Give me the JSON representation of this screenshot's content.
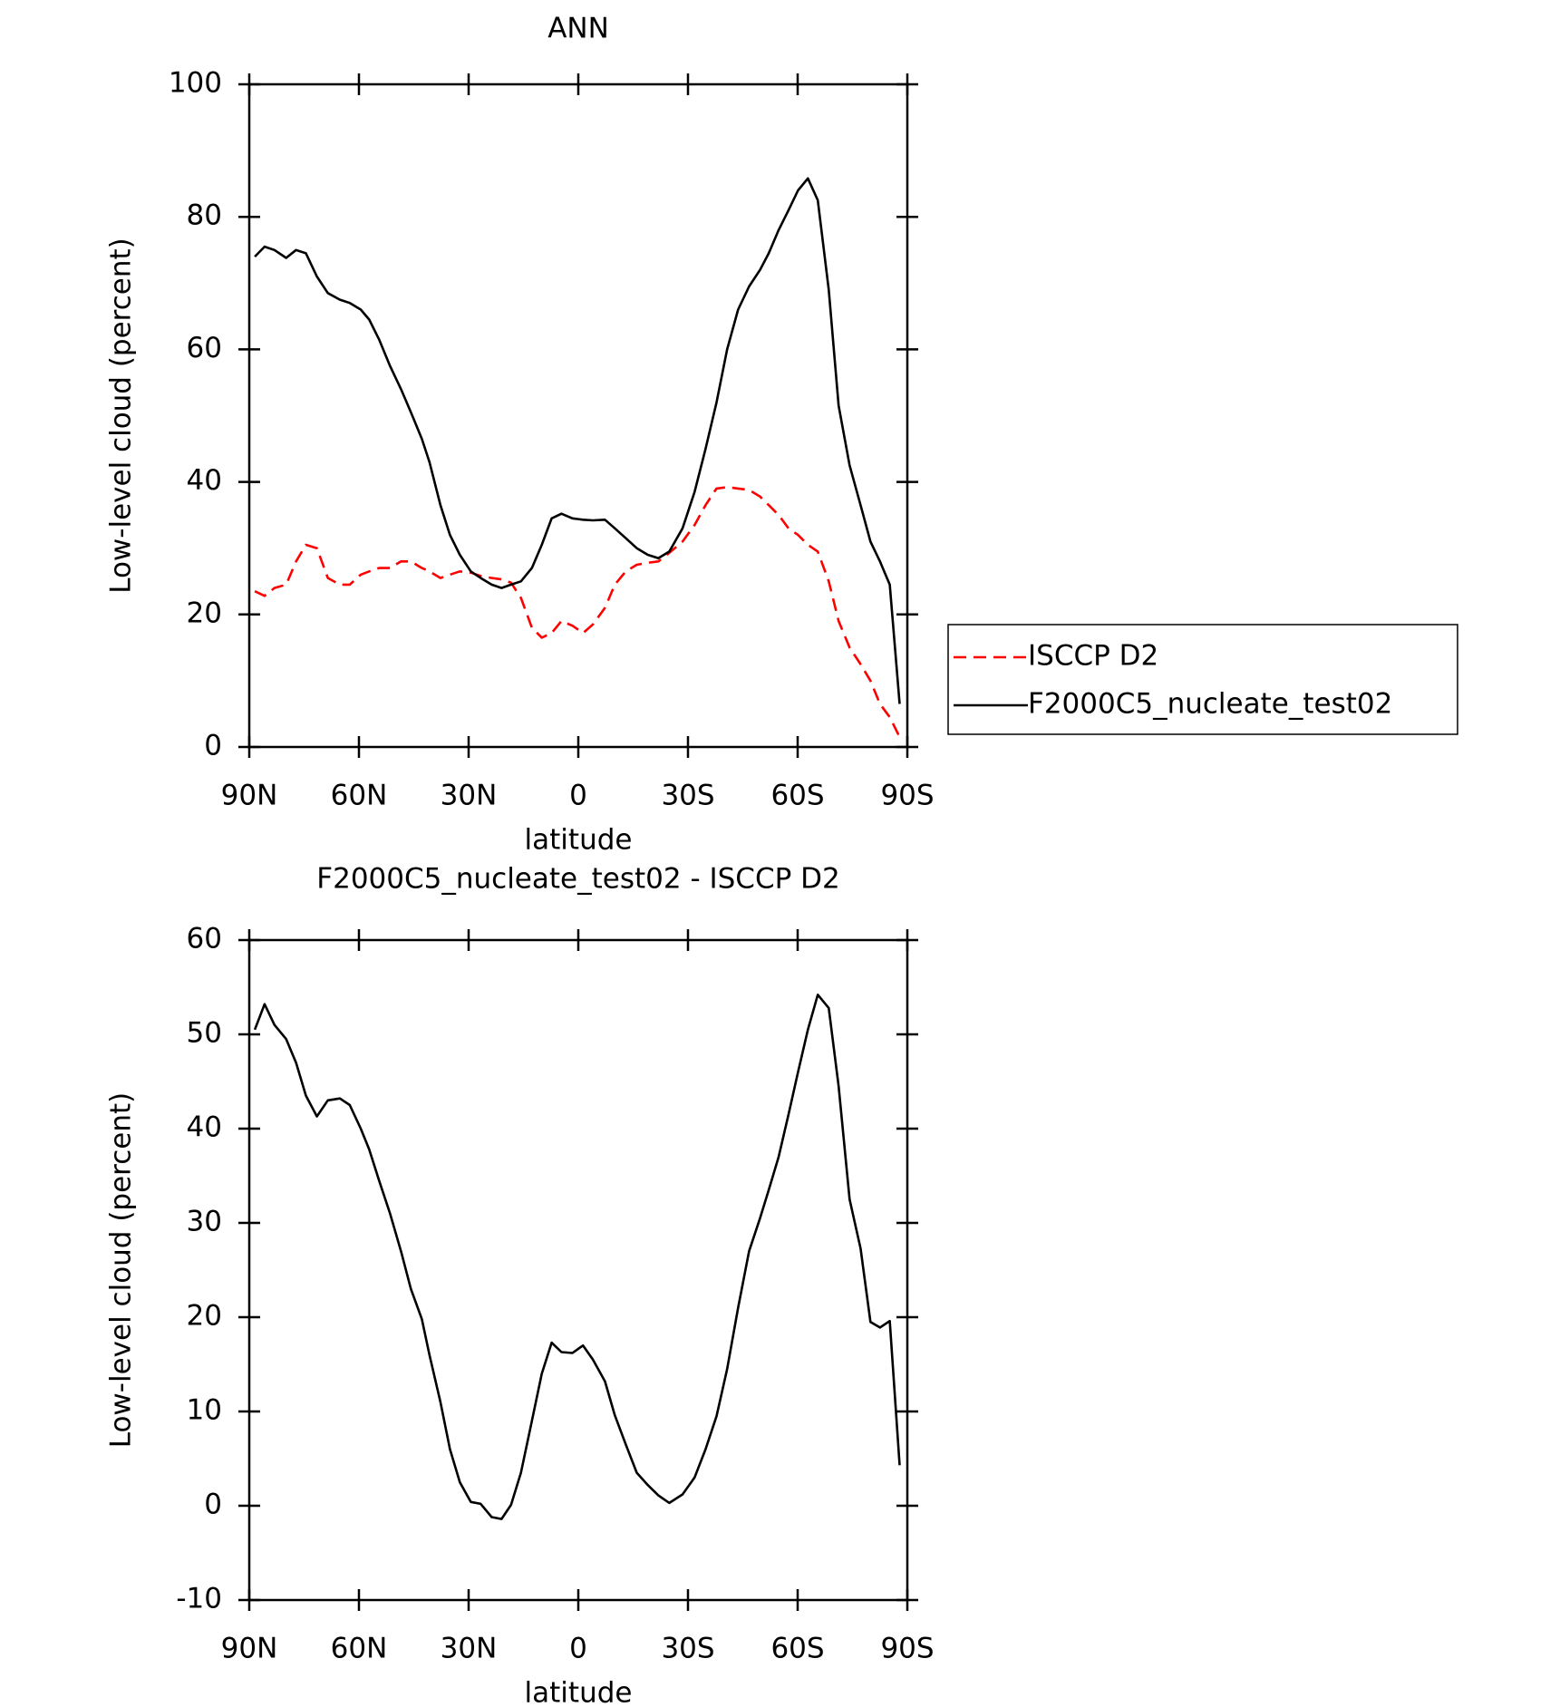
{
  "chart_data": [
    {
      "type": "line",
      "title": "ANN",
      "xlabel": "latitude",
      "ylabel": "Low-level cloud (percent)",
      "x": [
        88.5,
        85.8,
        83.1,
        79.9,
        77.2,
        74.5,
        71.5,
        68.5,
        65.2,
        62.5,
        59.5,
        57.2,
        54.5,
        51.5,
        48.5,
        45.8,
        42.8,
        40.7,
        37.7,
        35.1,
        32.4,
        29.4,
        26.7,
        23.7,
        21.0,
        18.4,
        15.7,
        12.7,
        10.0,
        7.3,
        4.6,
        1.6,
        -1.3,
        -4.0,
        -7.3,
        -10,
        -13,
        -16,
        -19,
        -21.9,
        -24.9,
        -28.5,
        -31.8,
        -34.8,
        -37.8,
        -40.7,
        -43.7,
        -46.7,
        -49.7,
        -52.1,
        -54.8,
        -57.5,
        -60.1,
        -62.8,
        -65.5,
        -68.5,
        -71.2,
        -74.2,
        -77.2,
        -79.9,
        -82.5,
        -85.2,
        -87.9
      ],
      "series": [
        {
          "name": "ISCCP D2",
          "color": "#ff0000",
          "dash": true,
          "values": [
            23.5,
            22.8,
            24,
            24.5,
            28,
            30.5,
            30,
            25.5,
            24.5,
            24.5,
            26,
            26.5,
            27,
            27,
            28,
            28,
            27,
            26.5,
            25.5,
            26,
            26.5,
            26.3,
            25.8,
            25.5,
            25.3,
            24.8,
            22.5,
            18,
            16.5,
            17.2,
            19,
            18.3,
            17.2,
            18.5,
            21,
            24.5,
            26.5,
            27.5,
            27.8,
            28,
            29.3,
            31,
            33.5,
            36.5,
            39,
            39.2,
            39,
            38.8,
            37.8,
            36.5,
            35,
            33,
            32,
            30.5,
            29.5,
            25,
            19,
            15,
            12.5,
            10,
            6.5,
            4.5,
            1.5
          ]
        },
        {
          "name": "F2000C5_nucleate_test02",
          "color": "#000000",
          "dash": false,
          "values": [
            74,
            75.5,
            75,
            73.8,
            75,
            74.5,
            71,
            68.5,
            67.5,
            67,
            66,
            64.5,
            61.5,
            57.5,
            54,
            50.5,
            46.5,
            43,
            36.5,
            32,
            29,
            26.5,
            25.5,
            24.5,
            24,
            24.5,
            25,
            27,
            30.5,
            34.5,
            35.2,
            34.5,
            34.3,
            34.2,
            34.3,
            33,
            31.5,
            30,
            29,
            28.5,
            29.5,
            33,
            38.5,
            45,
            52,
            60,
            66,
            69.5,
            72,
            74.5,
            78,
            81,
            84,
            85.8,
            82.5,
            69,
            51.5,
            42.5,
            36.5,
            31,
            28,
            24.5,
            6.5
          ]
        }
      ],
      "xlim": [
        90,
        -90
      ],
      "xticks": [
        {
          "value": 90,
          "label": "90N"
        },
        {
          "value": 60,
          "label": "60N"
        },
        {
          "value": 30,
          "label": "30N"
        },
        0,
        {
          "value": -30,
          "label": "30S"
        },
        {
          "value": -60,
          "label": "60S"
        },
        {
          "value": -90,
          "label": "90S"
        }
      ],
      "ylim": [
        0,
        100
      ],
      "yticks": [
        0,
        20,
        40,
        60,
        80,
        100
      ],
      "legend": "right"
    },
    {
      "type": "line",
      "title": "F2000C5_nucleate_test02 - ISCCP D2",
      "xlabel": "latitude",
      "ylabel": "Low-level cloud (percent)",
      "x": [
        88.5,
        85.8,
        83.1,
        79.9,
        77.2,
        74.5,
        71.5,
        68.5,
        65.2,
        62.5,
        59.5,
        57.2,
        54.5,
        51.5,
        48.5,
        45.8,
        42.8,
        40.7,
        37.7,
        35.1,
        32.4,
        29.4,
        26.7,
        23.7,
        21.0,
        18.4,
        15.7,
        12.7,
        10.0,
        7.3,
        4.6,
        1.6,
        -1.3,
        -4.0,
        -7.3,
        -10,
        -13,
        -16,
        -19,
        -21.9,
        -24.9,
        -28.5,
        -31.8,
        -34.8,
        -37.8,
        -40.7,
        -43.7,
        -46.7,
        -49.7,
        -52.1,
        -54.8,
        -57.5,
        -60.1,
        -62.8,
        -65.5,
        -68.5,
        -71.2,
        -74.2,
        -77.2,
        -79.9,
        -82.5,
        -85.2,
        -87.9
      ],
      "series": [
        {
          "color": "#000000",
          "dash": false,
          "values": [
            50.5,
            53.2,
            51,
            49.5,
            47,
            43.5,
            41.3,
            43,
            43.2,
            42.5,
            40,
            37.8,
            34.5,
            31,
            27,
            23,
            19.8,
            16,
            11,
            6,
            2.5,
            0.4,
            0.2,
            -1.2,
            -1.4,
            0.1,
            3.5,
            9,
            14,
            17.3,
            16.3,
            16.2,
            17,
            15.5,
            13.2,
            9.6,
            6.5,
            3.5,
            2.2,
            1.1,
            0.3,
            1.2,
            3,
            6,
            9.5,
            14.5,
            21,
            27,
            30.5,
            33.5,
            37,
            41.5,
            46,
            50.5,
            54.2,
            52.8,
            44.5,
            32.5,
            27.3,
            19.5,
            18.9,
            19.6,
            4.3
          ]
        }
      ],
      "xlim": [
        90,
        -90
      ],
      "xticks": [
        {
          "value": 90,
          "label": "90N"
        },
        {
          "value": 60,
          "label": "60N"
        },
        {
          "value": 30,
          "label": "30N"
        },
        0,
        {
          "value": -30,
          "label": "30S"
        },
        {
          "value": -60,
          "label": "60S"
        },
        {
          "value": -90,
          "label": "90S"
        }
      ],
      "ylim": [
        -10,
        60
      ],
      "yticks": [
        -10,
        0,
        10,
        20,
        30,
        40,
        50,
        60
      ]
    }
  ]
}
